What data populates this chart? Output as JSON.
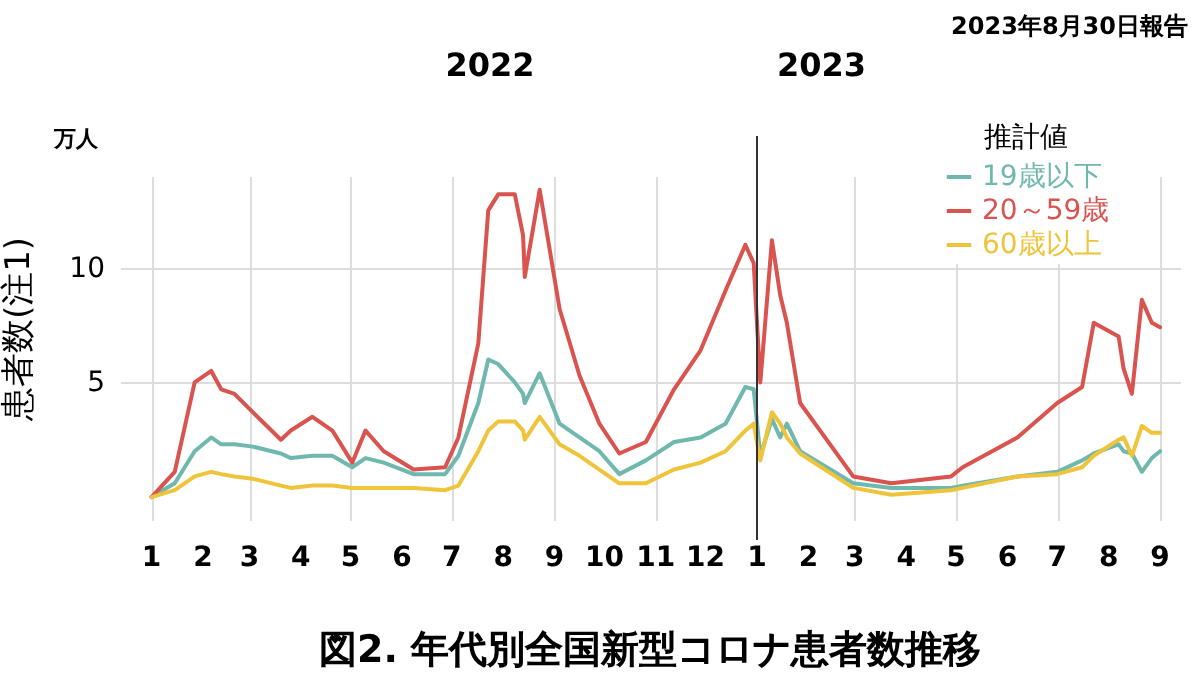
{
  "chart_data": {
    "type": "line",
    "title": "図2. 年代別全国新型コロナ患者数推移",
    "ylabel": "患者数(注1)",
    "legend_title": "推計値",
    "annotations": [
      "2023年8月30日報告",
      "2022",
      "万人"
    ],
    "x": [
      "2022-01-01",
      "2022-01-15",
      "2022-01-27",
      "2022-02-06",
      "2022-02-12",
      "2022-02-20",
      "2022-03-03",
      "2022-03-20",
      "2022-03-26",
      "2022-04-08",
      "2022-04-20",
      "2022-05-02",
      "2022-05-10",
      "2022-05-21",
      "2022-06-08",
      "2022-06-27",
      "2022-07-05",
      "2022-07-17",
      "2022-07-23",
      "2022-07-29",
      "2022-08-08",
      "2022-08-13",
      "2022-08-14",
      "2022-08-23",
      "2022-09-04",
      "2022-09-16",
      "2022-09-28",
      "2022-10-10",
      "2022-10-26",
      "2022-11-12",
      "2022-11-28",
      "2022-12-13",
      "2022-12-25",
      "2022-12-30",
      "2023-01-03",
      "2023-01-10",
      "2023-01-15",
      "2023-01-19",
      "2023-01-27",
      "2023-02-28",
      "2023-03-23",
      "2023-04-28",
      "2023-05-05",
      "2023-06-07",
      "2023-07-01",
      "2023-07-16",
      "2023-07-23",
      "2023-08-07",
      "2023-08-10",
      "2023-08-15",
      "2023-08-21",
      "2023-08-27",
      "2023-09-01"
    ],
    "series": [
      {
        "name": "19歳以下",
        "color": "#6fb8ae",
        "values": [
          0,
          0.6,
          2.0,
          2.6,
          2.3,
          2.3,
          2.2,
          1.9,
          1.7,
          1.8,
          1.8,
          1.3,
          1.7,
          1.5,
          1.0,
          1.0,
          1.8,
          4.1,
          6.0,
          5.8,
          5.0,
          4.5,
          4.1,
          5.4,
          3.2,
          2.6,
          2.0,
          1.0,
          1.6,
          2.4,
          2.6,
          3.2,
          4.8,
          4.7,
          1.8,
          3.4,
          2.6,
          3.2,
          2.0,
          0.6,
          0.4,
          0.4,
          0.5,
          0.9,
          1.1,
          1.6,
          1.9,
          2.3,
          2.0,
          1.9,
          1.1,
          1.7,
          2.0
        ]
      },
      {
        "name": "20～59歳",
        "color": "#d9534f",
        "values": [
          0,
          1.1,
          5.0,
          5.5,
          4.7,
          4.5,
          3.7,
          2.5,
          2.9,
          3.5,
          2.9,
          1.5,
          2.9,
          2.0,
          1.2,
          1.3,
          2.6,
          6.7,
          12.5,
          13.2,
          13.2,
          11.4,
          9.6,
          13.4,
          8.2,
          5.3,
          3.2,
          1.9,
          2.4,
          4.7,
          6.4,
          9.0,
          11.0,
          10.2,
          5.0,
          11.2,
          8.8,
          7.6,
          4.1,
          0.9,
          0.6,
          0.9,
          1.3,
          2.6,
          4.1,
          4.8,
          7.6,
          7.0,
          5.6,
          4.5,
          8.6,
          7.6,
          7.4
        ]
      },
      {
        "name": "60歳以上",
        "color": "#efc43a",
        "values": [
          0,
          0.3,
          0.9,
          1.1,
          1.0,
          0.9,
          0.8,
          0.5,
          0.4,
          0.5,
          0.5,
          0.4,
          0.4,
          0.4,
          0.4,
          0.3,
          0.5,
          2.0,
          2.9,
          3.3,
          3.3,
          2.9,
          2.5,
          3.5,
          2.3,
          1.8,
          1.2,
          0.6,
          0.6,
          1.2,
          1.5,
          2.0,
          2.9,
          3.2,
          1.6,
          3.7,
          3.2,
          2.6,
          1.9,
          0.4,
          0.1,
          0.3,
          0.4,
          0.9,
          1.0,
          1.3,
          1.8,
          2.5,
          2.6,
          1.8,
          3.1,
          2.8,
          2.8
        ]
      }
    ],
    "xlim": [
      "2021-12-13",
      "2023-09-13"
    ],
    "xticks": [
      {
        "value": "2022-01",
        "label": "1"
      },
      {
        "value": "2022-02",
        "label": "2"
      },
      {
        "value": "2022-03",
        "label": "3"
      },
      {
        "value": "2022-04",
        "label": "4"
      },
      {
        "value": "2022-05",
        "label": "5"
      },
      {
        "value": "2022-06",
        "label": "6"
      },
      {
        "value": "2022-07",
        "label": "7"
      },
      {
        "value": "2022-08",
        "label": "8"
      },
      {
        "value": "2022-09",
        "label": "9"
      },
      {
        "value": "2022-10",
        "label": "10"
      },
      {
        "value": "2022-11",
        "label": "11"
      },
      {
        "value": "2022-12",
        "label": "12"
      },
      {
        "value": "2023-01",
        "label": "1"
      },
      {
        "value": "2023-02",
        "label": "2"
      },
      {
        "value": "2023-03",
        "label": "3"
      },
      {
        "value": "2023-04",
        "label": "4"
      },
      {
        "value": "2023-05",
        "label": "5"
      },
      {
        "value": "2023-06",
        "label": "6"
      },
      {
        "value": "2023-07",
        "label": "7"
      },
      {
        "value": "2023-08",
        "label": "8"
      },
      {
        "value": "2023-09",
        "label": "9"
      }
    ],
    "ylim": [
      -1,
      14
    ],
    "yticks": [
      5,
      10
    ],
    "ref_lines": [
      {
        "axis": "x",
        "value": "2023-01",
        "label": "2023",
        "color": "#333333"
      }
    ],
    "grid": true,
    "legend": "top right",
    "marker": "none",
    "line_style": "solid"
  }
}
